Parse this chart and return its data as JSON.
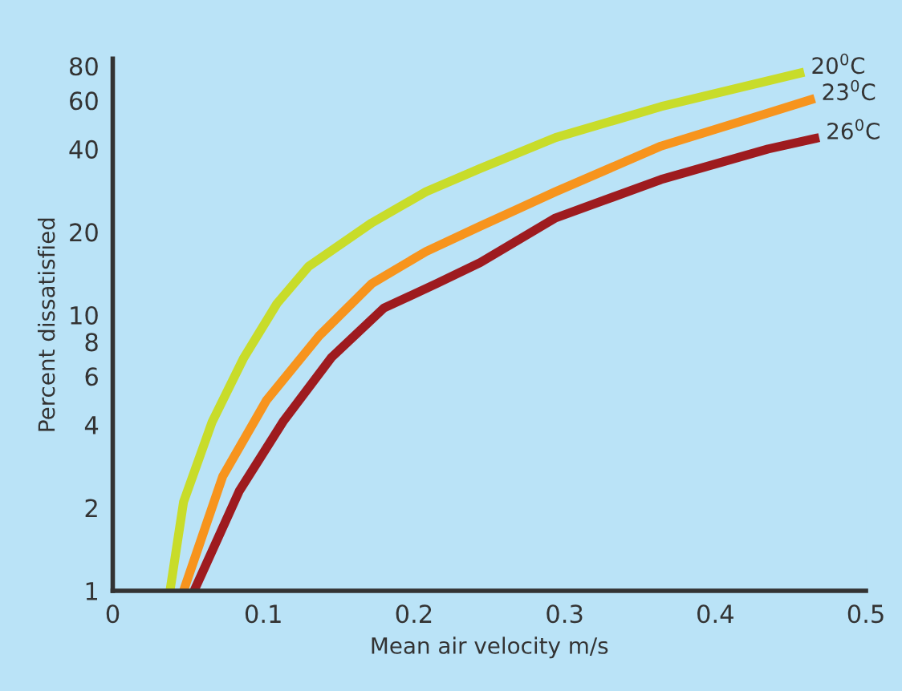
{
  "chart_data": {
    "type": "line",
    "xlabel": "Mean air velocity m/s",
    "ylabel": "Percent dissatisfied",
    "log": "y",
    "xlim": [
      0,
      0.5
    ],
    "xticks": [
      0,
      0.1,
      0.2,
      0.3,
      0.4,
      0.5
    ],
    "ylim": [
      1,
      85
    ],
    "yticks": [
      1,
      2,
      4,
      6,
      8,
      10,
      20,
      40,
      60,
      80
    ],
    "grid": false,
    "legend": false,
    "marker": "none",
    "line_style": "solid",
    "series": [
      {
        "name": "20$^{0}$C",
        "color": "#c8dc2a",
        "x": [
          0.038,
          0.047,
          0.066,
          0.087,
          0.109,
          0.13,
          0.172,
          0.208,
          0.244,
          0.294,
          0.364,
          0.459
        ],
        "values": [
          1,
          2.1,
          4.1,
          7,
          11,
          15,
          21.6,
          28,
          34,
          44,
          57,
          76
        ]
      },
      {
        "name": "23$^{0}$C",
        "color": "#f7941d",
        "x": [
          0.047,
          0.073,
          0.102,
          0.137,
          0.172,
          0.208,
          0.244,
          0.294,
          0.364,
          0.435,
          0.466
        ],
        "values": [
          1,
          2.6,
          4.9,
          8.4,
          13,
          17,
          21,
          28,
          41,
          54,
          61
        ]
      },
      {
        "name": "26$^{0}$C",
        "color": "#9e1b1f",
        "x": [
          0.054,
          0.084,
          0.113,
          0.145,
          0.18,
          0.215,
          0.244,
          0.294,
          0.364,
          0.435,
          0.469
        ],
        "values": [
          1,
          2.3,
          4.1,
          7,
          10.6,
          13,
          15.5,
          22.5,
          31,
          40,
          44
        ]
      }
    ]
  }
}
